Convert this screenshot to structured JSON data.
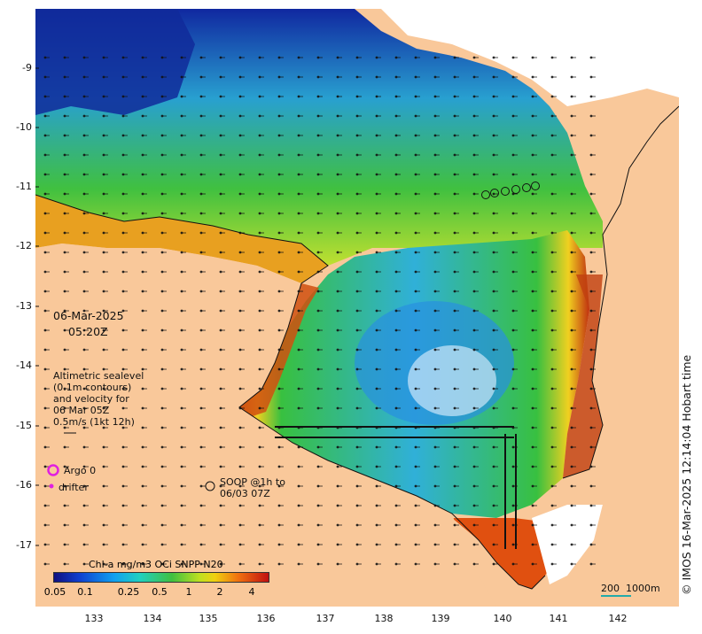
{
  "map": {
    "date_line": "06-Mar-2025",
    "time_line": "05:20Z",
    "altimetry_note": "Altimetric sealevel\n(0.1m contours)\nand velocity for\n06 Mar 05Z\n0.5m/s (1kt 12h)",
    "argo_label": "Argo 0",
    "drifter_label": "drifter",
    "soop_label": "SOOP @1h to\n06/03 07Z",
    "colorbar_title": "Chl-a mg/m3 OCi SNPP N20",
    "colorbar_ticks": [
      "0.05",
      "0.1",
      "0.25",
      "0.5",
      "1",
      "2",
      "4"
    ],
    "scale_label": "200",
    "scale_label2": "1000m",
    "credit": "© IMOS 16-Mar-2025 12:14:04 Hobart time",
    "lat_ticks": [
      "-9",
      "-10",
      "-11",
      "-12",
      "-13",
      "-14",
      "-15",
      "-16",
      "-17"
    ],
    "lon_ticks": [
      "133",
      "134",
      "135",
      "136",
      "137",
      "138",
      "139",
      "140",
      "141",
      "142"
    ],
    "colors": {
      "land": "#f9c89a",
      "low_chl": "#1030a0",
      "mid_chl": "#30c040",
      "high_chl": "#e07010",
      "argo": "#e020e0"
    }
  }
}
